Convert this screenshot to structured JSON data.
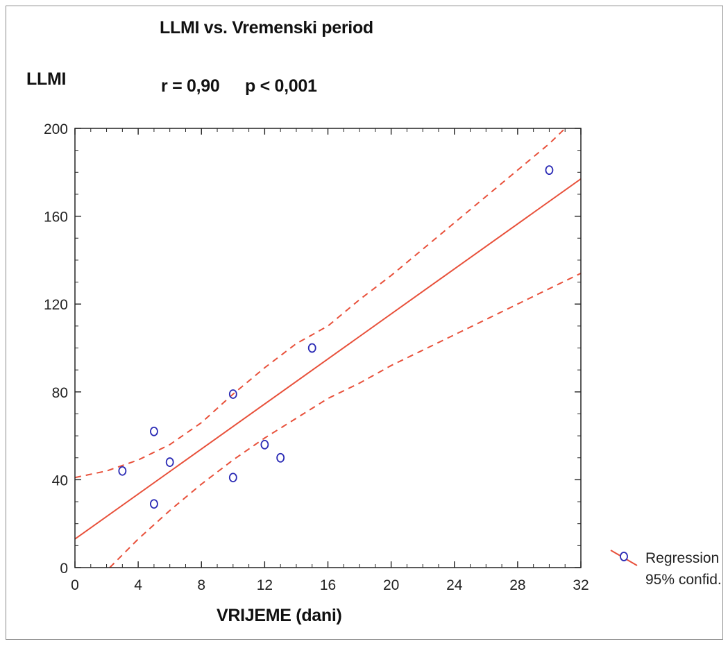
{
  "chart_data": {
    "type": "scatter",
    "title": "LLMI vs. Vremenski period",
    "ylabel": "LLMI",
    "xlabel": "VRIJEME (dani)",
    "stats": {
      "r": "r = 0,90",
      "p": "p < 0,001"
    },
    "xlim": [
      0,
      32
    ],
    "ylim": [
      0,
      200
    ],
    "xticks": [
      "0",
      "4",
      "8",
      "12",
      "16",
      "20",
      "24",
      "28",
      "32"
    ],
    "yticks": [
      "0",
      "40",
      "80",
      "120",
      "160",
      "200"
    ],
    "points": [
      {
        "x": 3,
        "y": 44
      },
      {
        "x": 5,
        "y": 29
      },
      {
        "x": 5,
        "y": 62
      },
      {
        "x": 6,
        "y": 48
      },
      {
        "x": 10,
        "y": 41
      },
      {
        "x": 10,
        "y": 79
      },
      {
        "x": 12,
        "y": 56
      },
      {
        "x": 13,
        "y": 50
      },
      {
        "x": 15,
        "y": 100
      },
      {
        "x": 30,
        "y": 181
      }
    ],
    "regression": {
      "x": [
        0,
        32
      ],
      "y": [
        13,
        177
      ]
    },
    "confidence_upper": {
      "x": [
        0,
        2,
        4,
        6,
        8,
        10,
        12,
        14,
        16,
        18,
        20,
        22,
        24,
        26,
        28,
        30,
        31
      ],
      "y": [
        41,
        44,
        49,
        56,
        66,
        79,
        91,
        102,
        110,
        122,
        133,
        145,
        157,
        169,
        181,
        193,
        200
      ]
    },
    "confidence_lower": {
      "x": [
        2.2,
        4,
        6,
        8,
        10,
        12,
        14,
        16,
        18,
        20,
        22,
        24,
        26,
        28,
        30,
        32
      ],
      "y": [
        0,
        13,
        26,
        38,
        49,
        59,
        68,
        77,
        84,
        92,
        99,
        106,
        113,
        120,
        127,
        134
      ]
    },
    "legend": {
      "position": "right",
      "labels": [
        "Regression",
        "95% confid."
      ]
    },
    "colors": {
      "points": "#2b2bb5",
      "line": "#e8503a",
      "axis": "#222222"
    },
    "grid": false
  }
}
